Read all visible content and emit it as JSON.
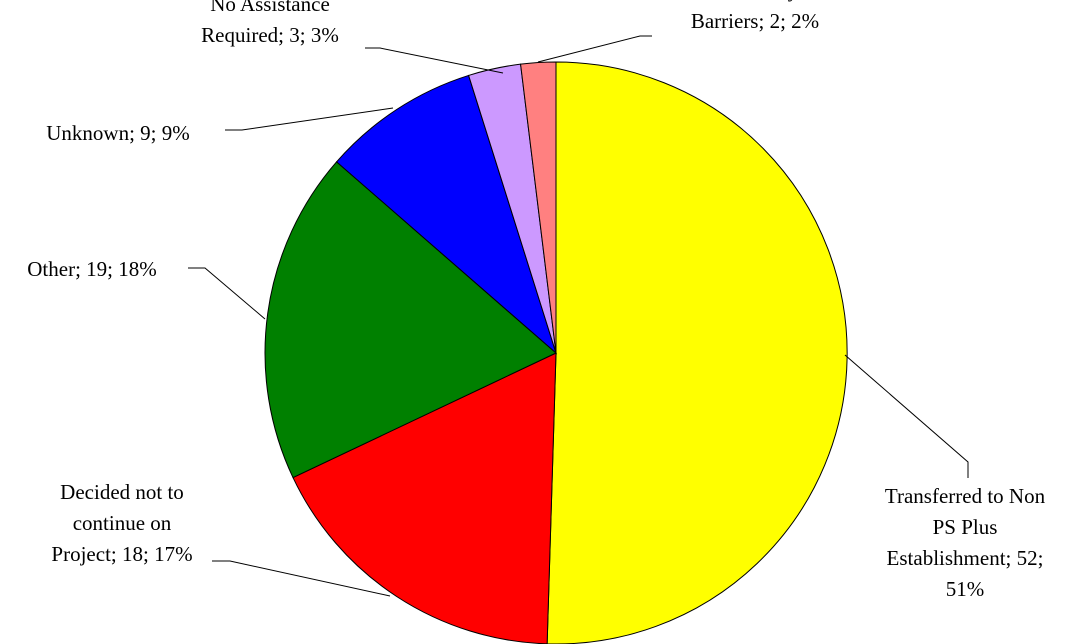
{
  "chart_data": {
    "type": "pie",
    "title": "",
    "start_angle_deg": 0,
    "direction": "clockwise",
    "legend": "none",
    "slices": [
      {
        "category": "Transferred to Non PS Plus Establishment",
        "value": 52,
        "percent": "51%",
        "color": "#FFFF00",
        "label_lines": [
          "Transferred to Non",
          "PS Plus",
          "Establishment; 52;",
          "51%"
        ]
      },
      {
        "category": "Decided not to continue on Project",
        "value": 18,
        "percent": "17%",
        "color": "#FF0000",
        "label_lines": [
          "Decided not to",
          "continue on",
          "Project; 18; 17%"
        ]
      },
      {
        "category": "Other",
        "value": 19,
        "percent": "18%",
        "color": "#008000",
        "label_lines": [
          "Other; 19; 18%"
        ]
      },
      {
        "category": "Unknown",
        "value": 9,
        "percent": "9%",
        "color": "#0000FF",
        "label_lines": [
          "Unknown; 9; 9%"
        ]
      },
      {
        "category": "No Assistance Required",
        "value": 3,
        "percent": "3%",
        "color": "#CC99FF",
        "label_lines": [
          "No Assistance",
          "Required; 3; 3%"
        ]
      },
      {
        "category": "Too Many Barriers",
        "value": 2,
        "percent": "2%",
        "color": "#FF8080",
        "label_lines": [
          "Too Many",
          "Barriers; 2; 2%"
        ]
      }
    ]
  }
}
